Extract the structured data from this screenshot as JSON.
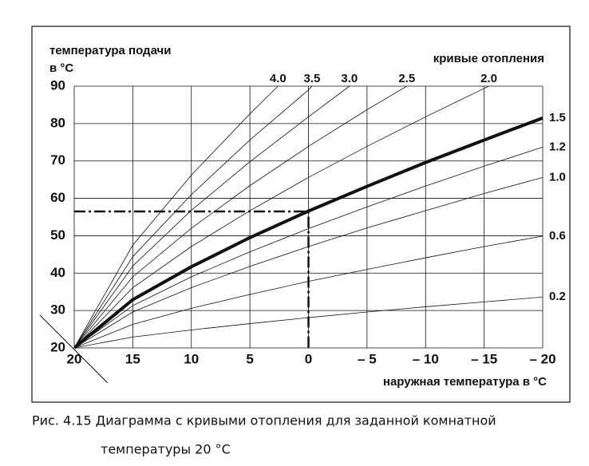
{
  "chart_data": {
    "type": "line",
    "y_label": [
      "температура подачи",
      "в °C"
    ],
    "x_label": "наружная температура в °C",
    "curves_label": "кривые отопления",
    "caption": [
      "Рис. 4.15 Диаграмма с кривыми отопления для заданной комнатной",
      "температуры 20 °С"
    ],
    "xlim": [
      20,
      -20
    ],
    "ylim": [
      20,
      90
    ],
    "xticks": [
      20,
      15,
      10,
      5,
      0,
      {
        "value": -5,
        "label": "– 5"
      },
      {
        "value": -10,
        "label": "– 10"
      },
      {
        "value": -15,
        "label": "– 15"
      },
      {
        "value": -20,
        "label": "– 20"
      }
    ],
    "yticks": [
      20,
      30,
      40,
      50,
      60,
      70,
      80,
      90
    ],
    "grid": true,
    "reference": {
      "x": 0,
      "y": 56.5
    },
    "series": [
      {
        "name": "4.0",
        "color": "#111",
        "line_width": 0.8,
        "x": [
          20,
          15,
          10,
          5,
          2.6
        ],
        "values": [
          20,
          47.5,
          66.2,
          82.6,
          90
        ]
      },
      {
        "name": "3.5",
        "color": "#111",
        "line_width": 0.8,
        "x": [
          20,
          15,
          10,
          5,
          0,
          -0.3
        ],
        "values": [
          20,
          44.4,
          61.0,
          75.6,
          89.0,
          90
        ]
      },
      {
        "name": "3.0",
        "color": "#111",
        "line_width": 0.8,
        "x": [
          20,
          15,
          10,
          5,
          0,
          -3.5
        ],
        "values": [
          20,
          41.9,
          56.8,
          69.8,
          81.8,
          90
        ]
      },
      {
        "name": "2.5",
        "color": "#111",
        "line_width": 0.8,
        "x": [
          20,
          15,
          10,
          5,
          0,
          -5,
          -8.4
        ],
        "values": [
          20,
          39.0,
          52.0,
          63.4,
          73.9,
          83.7,
          90
        ]
      },
      {
        "name": "2.0",
        "color": "#111",
        "line_width": 0.8,
        "x": [
          20,
          15,
          10,
          5,
          0,
          -5,
          -10,
          -15,
          -15.4
        ],
        "values": [
          20,
          36.1,
          47.1,
          56.7,
          65.6,
          73.9,
          81.8,
          89.4,
          90
        ]
      },
      {
        "name": "1.5",
        "color": "#111",
        "line_width": 4,
        "x": [
          20,
          15,
          10,
          5,
          0,
          -5,
          -10,
          -15,
          -20
        ],
        "values": [
          20,
          32.9,
          41.7,
          49.5,
          56.6,
          63.2,
          69.6,
          75.6,
          81.5
        ]
      },
      {
        "name": "1.2",
        "color": "#111",
        "line_width": 0.8,
        "x": [
          20,
          15,
          10,
          5,
          0,
          -5,
          -10,
          -15,
          -20
        ],
        "values": [
          20,
          31.3,
          39.0,
          45.7,
          51.9,
          57.7,
          63.3,
          68.6,
          73.7
        ]
      },
      {
        "name": "1.0",
        "color": "#111",
        "line_width": 0.8,
        "x": [
          20,
          15,
          10,
          5,
          0,
          -5,
          -10,
          -15,
          -20
        ],
        "values": [
          20,
          29.6,
          36.1,
          41.8,
          47.1,
          52.1,
          56.7,
          61.3,
          65.6
        ]
      },
      {
        "name": "0.6",
        "color": "#111",
        "line_width": 0.8,
        "x": [
          20,
          15,
          10,
          5,
          0,
          -5,
          -10,
          -15,
          -20
        ],
        "values": [
          20,
          26.3,
          30.6,
          34.3,
          37.8,
          41.0,
          44.1,
          47.1,
          49.9
        ]
      },
      {
        "name": "0.2",
        "color": "#111",
        "line_width": 0.8,
        "x": [
          20,
          15,
          10,
          5,
          0,
          -5,
          -10,
          -15,
          -20
        ],
        "values": [
          20,
          22.9,
          24.8,
          26.5,
          28.1,
          29.6,
          31.0,
          32.3,
          33.6
        ]
      }
    ]
  }
}
